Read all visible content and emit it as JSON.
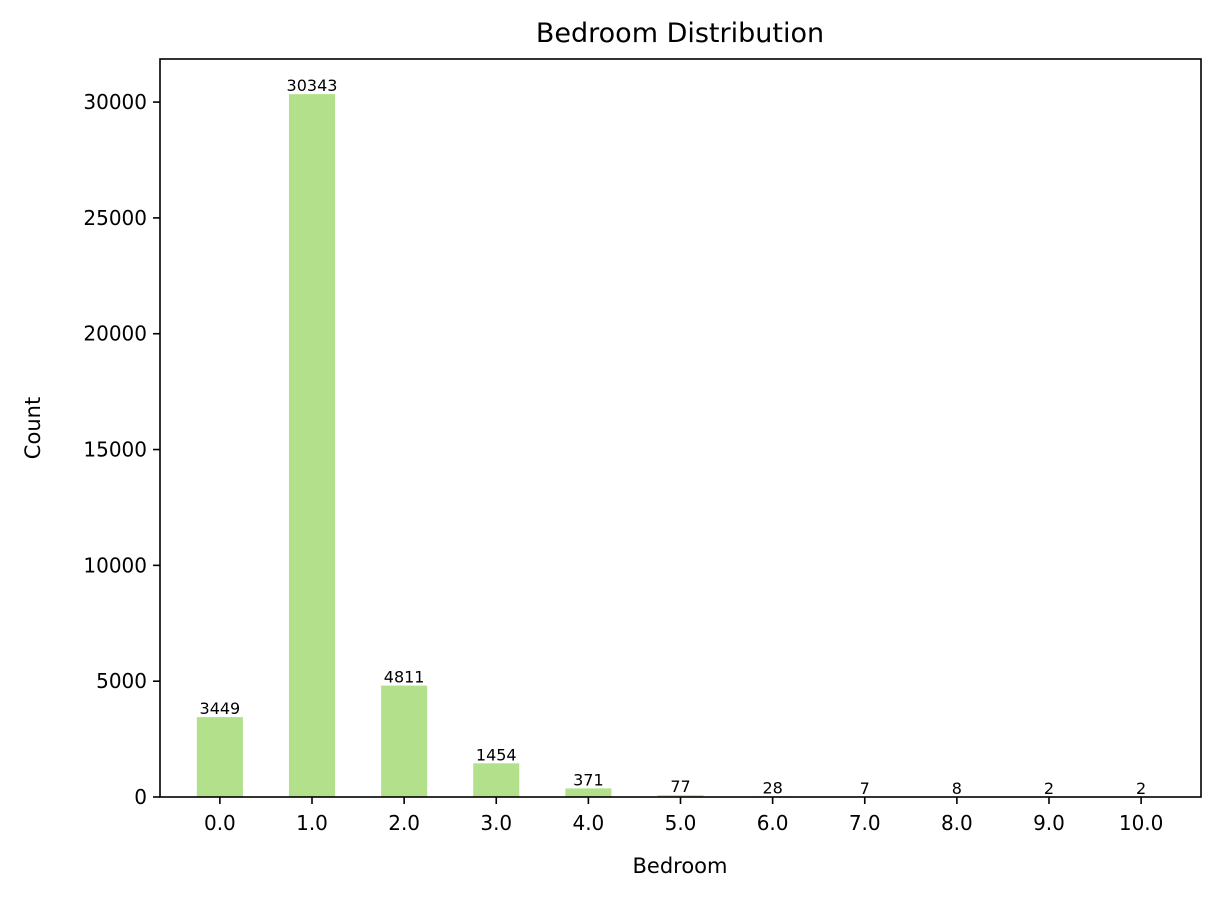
{
  "chart_data": {
    "type": "bar",
    "title": "Bedroom Distribution",
    "xlabel": "Bedroom",
    "ylabel": "Count",
    "categories": [
      "0.0",
      "1.0",
      "2.0",
      "3.0",
      "4.0",
      "5.0",
      "6.0",
      "7.0",
      "8.0",
      "9.0",
      "10.0"
    ],
    "values": [
      3449,
      30343,
      4811,
      1454,
      371,
      77,
      28,
      7,
      8,
      2,
      2
    ],
    "data_labels": [
      "3449",
      "30343",
      "4811",
      "1454",
      "371",
      "77",
      "28",
      "7",
      "8",
      "2",
      "2"
    ],
    "ylim": [
      0,
      31860
    ],
    "yticks": [
      0,
      5000,
      10000,
      15000,
      20000,
      25000,
      30000
    ],
    "ytick_labels": [
      "0",
      "5000",
      "10000",
      "15000",
      "20000",
      "25000",
      "30000"
    ],
    "bar_color": "#b3e08a",
    "grid": false,
    "legend": "none"
  }
}
